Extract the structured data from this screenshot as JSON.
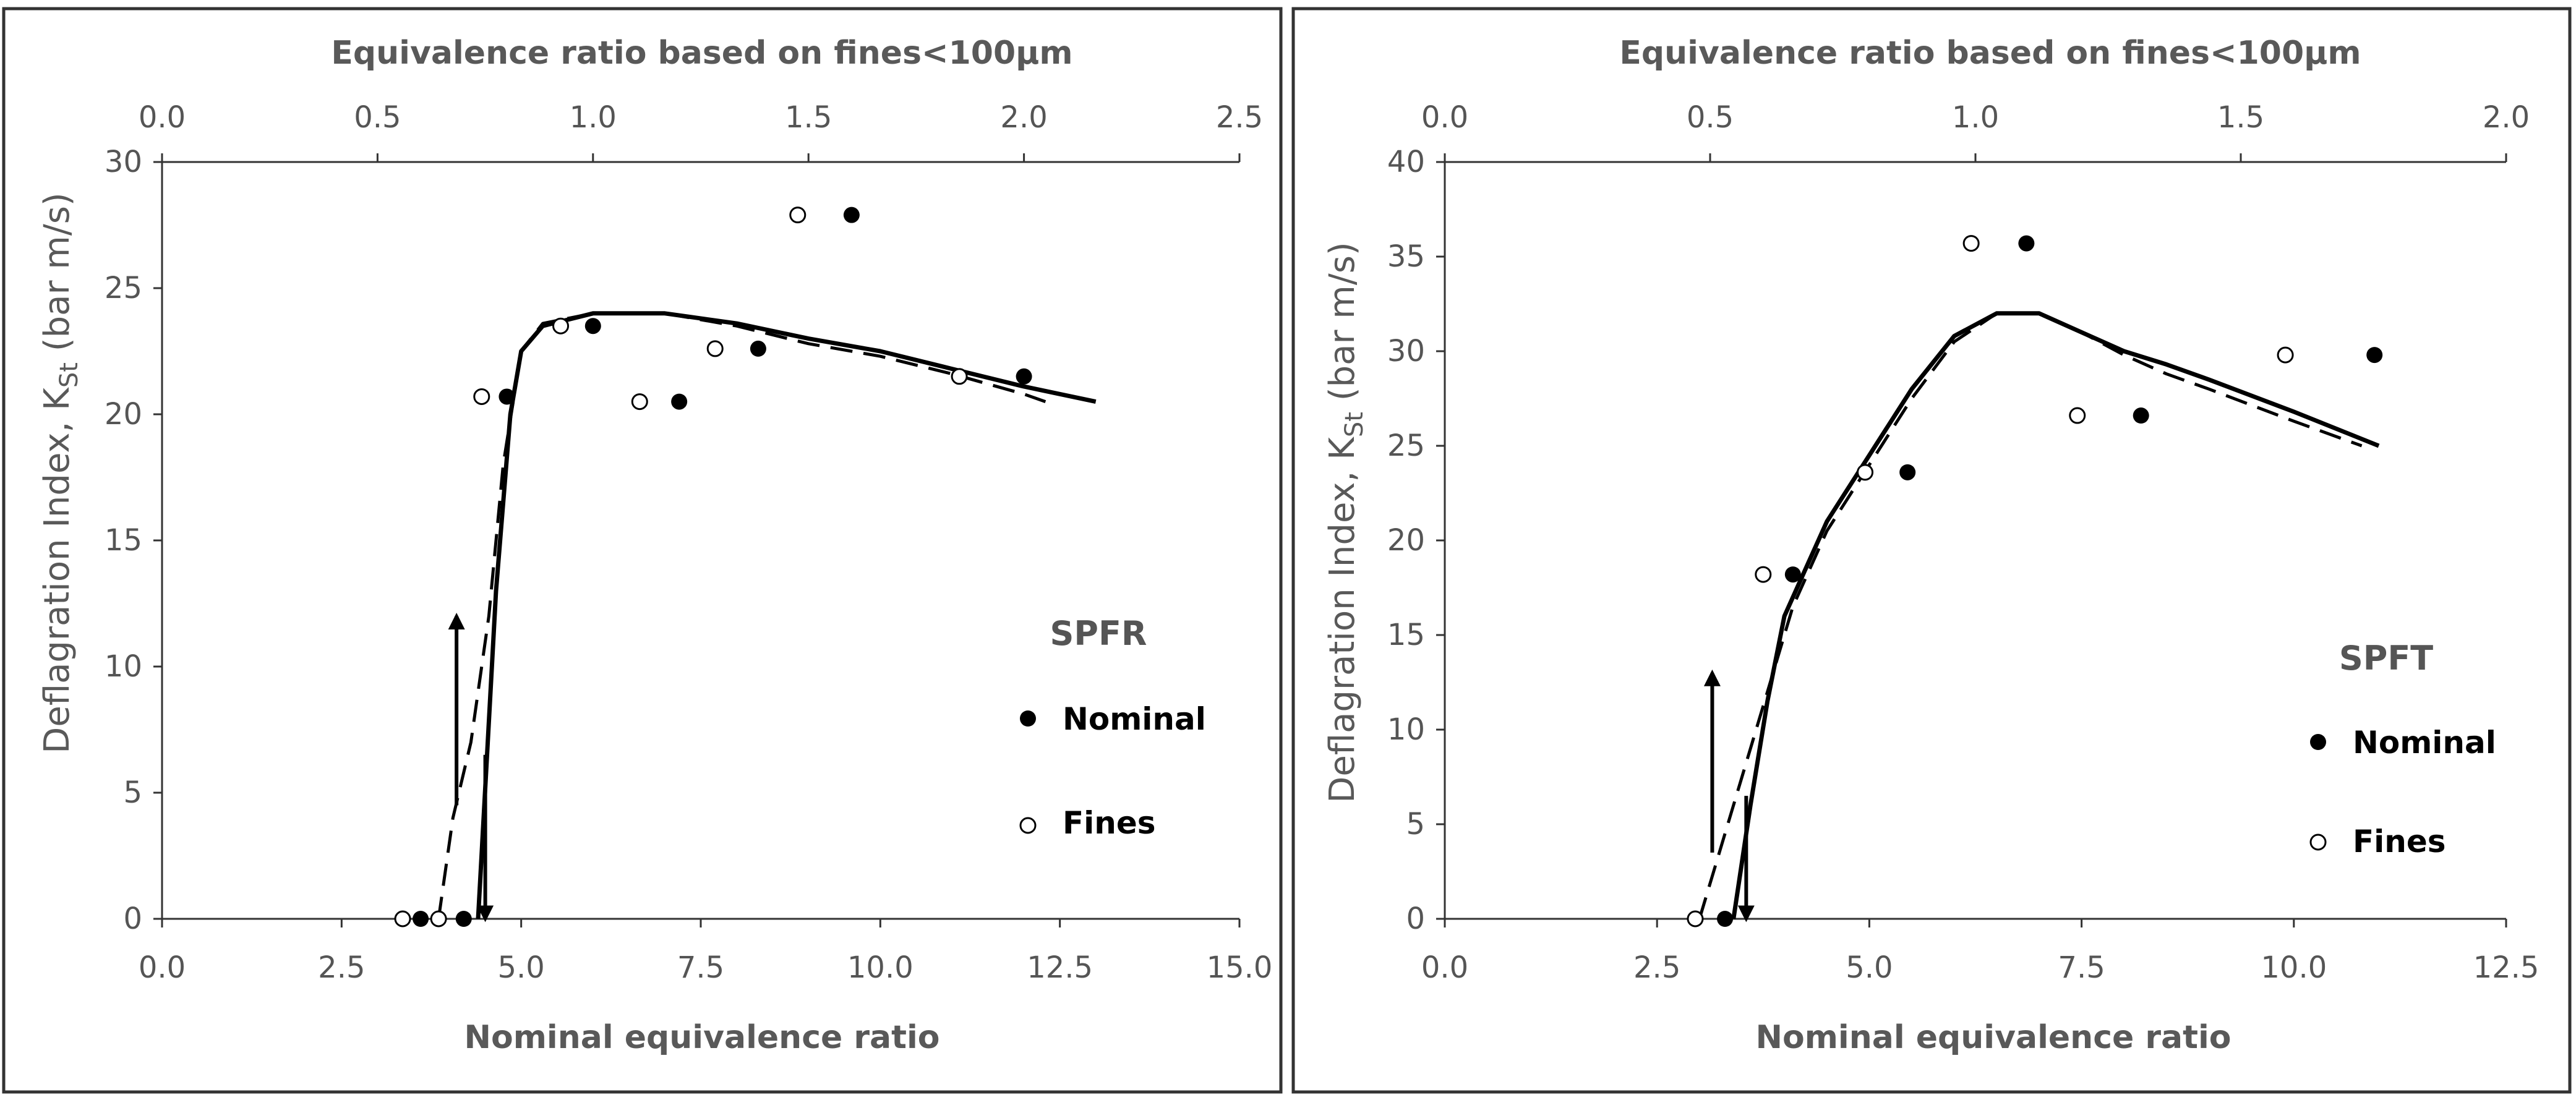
{
  "chart_data": [
    {
      "type": "scatter",
      "panel": "SPFR",
      "title": "",
      "label": "SPFR",
      "xlabel": "Nominal equivalence ratio",
      "x2label": "Equivalence ratio based on fines<100µm",
      "ylabel": "Deflagration Index, K",
      "ylabel_sub": "St",
      "ylabel_unit": " (bar m/s)",
      "xlim": [
        0,
        15
      ],
      "x2lim": [
        0,
        2.5
      ],
      "ylim": [
        0,
        30
      ],
      "xticks": [
        "0.0",
        "2.5",
        "5.0",
        "7.5",
        "10.0",
        "12.5",
        "15.0"
      ],
      "x2ticks": [
        "0.0",
        "0.5",
        "1.0",
        "1.5",
        "2.0",
        "2.5"
      ],
      "yticks": [
        "0",
        "5",
        "10",
        "15",
        "20",
        "25",
        "30"
      ],
      "legend": [
        "Nominal",
        "Fines"
      ],
      "series": [
        {
          "name": "Nominal",
          "marker": "filled-circle",
          "x": [
            3.6,
            4.2,
            4.8,
            6.0,
            7.2,
            8.3,
            9.6,
            12.0
          ],
          "y": [
            0,
            0,
            20.7,
            23.5,
            20.5,
            22.6,
            27.9,
            21.5
          ]
        },
        {
          "name": "Fines",
          "marker": "open-circle",
          "x": [
            3.35,
            3.85,
            4.45,
            5.55,
            6.65,
            7.7,
            8.85,
            11.1
          ],
          "y": [
            0,
            0,
            20.7,
            23.5,
            20.5,
            22.6,
            27.9,
            21.5
          ]
        },
        {
          "name": "Nominal fit",
          "line": "solid",
          "x": [
            4.4,
            4.65,
            4.85,
            5.0,
            5.3,
            6.0,
            7.0,
            8.0,
            9.0,
            10.0,
            11.0,
            12.0,
            13.0
          ],
          "y": [
            0,
            13.0,
            20.0,
            22.5,
            23.5,
            24.0,
            24.0,
            23.6,
            23.0,
            22.5,
            21.8,
            21.1,
            20.5
          ]
        },
        {
          "name": "Fines fit",
          "line": "dashed",
          "x": [
            3.85,
            4.05,
            4.3,
            4.55,
            4.75,
            5.0,
            5.3,
            6.0,
            7.0,
            8.0,
            9.0,
            10.0,
            11.0,
            12.0,
            12.3
          ],
          "y": [
            0,
            4.0,
            7.0,
            12.0,
            18.0,
            22.5,
            23.6,
            24.0,
            24.0,
            23.5,
            22.8,
            22.3,
            21.6,
            20.8,
            20.5
          ]
        }
      ],
      "arrows": [
        {
          "x": 4.1,
          "from": 4.5,
          "to": 12.0,
          "direction": "up"
        },
        {
          "x": 4.5,
          "from": 6.5,
          "to": 0,
          "direction": "down"
        }
      ]
    },
    {
      "type": "scatter",
      "panel": "SPFT",
      "title": "",
      "label": "SPFT",
      "xlabel": "Nominal equivalence ratio",
      "x2label": "Equivalence ratio based on fines<100µm",
      "ylabel": "Deflagration Index, K",
      "ylabel_sub": "St",
      "ylabel_unit": " (bar m/s)",
      "xlim": [
        0,
        12.5
      ],
      "x2lim": [
        0,
        2.0
      ],
      "ylim": [
        0,
        40
      ],
      "xticks": [
        "0.0",
        "2.5",
        "5.0",
        "7.5",
        "10.0",
        "12.5"
      ],
      "x2ticks": [
        "0.0",
        "0.5",
        "1.0",
        "1.5",
        "2.0"
      ],
      "yticks": [
        "0",
        "5",
        "10",
        "15",
        "20",
        "25",
        "30",
        "35",
        "40"
      ],
      "legend": [
        "Nominal",
        "Fines"
      ],
      "series": [
        {
          "name": "Nominal",
          "marker": "filled-circle",
          "x": [
            3.3,
            4.1,
            5.45,
            6.85,
            8.2,
            10.95
          ],
          "y": [
            0,
            18.2,
            23.6,
            35.7,
            26.6,
            29.8
          ]
        },
        {
          "name": "Fines",
          "marker": "open-circle",
          "x": [
            2.95,
            3.75,
            4.95,
            6.2,
            7.45,
            9.9
          ],
          "y": [
            0,
            18.2,
            23.6,
            35.7,
            26.6,
            29.8
          ]
        },
        {
          "name": "Nominal fit",
          "line": "solid",
          "x": [
            3.4,
            3.6,
            3.8,
            4.0,
            4.5,
            5.0,
            5.5,
            6.0,
            6.5,
            7.0,
            7.5,
            8.0,
            8.5,
            9.0,
            10.0,
            11.0
          ],
          "y": [
            0,
            6.0,
            11.5,
            16.0,
            21.0,
            24.5,
            28.0,
            30.8,
            32.0,
            32.0,
            31.0,
            30.0,
            29.3,
            28.5,
            26.8,
            25.0
          ]
        },
        {
          "name": "Fines fit",
          "line": "dashed",
          "x": [
            3.0,
            3.2,
            3.5,
            3.8,
            4.1,
            4.5,
            5.0,
            5.5,
            6.0,
            6.5,
            7.0,
            7.5,
            8.0,
            8.5,
            9.0,
            10.0,
            10.8
          ],
          "y": [
            0,
            3.0,
            7.5,
            12.0,
            16.5,
            20.5,
            24.0,
            27.5,
            30.5,
            32.0,
            32.0,
            31.0,
            29.8,
            28.8,
            28.0,
            26.3,
            25.0
          ]
        }
      ],
      "arrows": [
        {
          "x": 3.15,
          "from": 3.5,
          "to": 13.0,
          "direction": "up"
        },
        {
          "x": 3.55,
          "from": 6.5,
          "to": 0,
          "direction": "down"
        }
      ]
    }
  ]
}
